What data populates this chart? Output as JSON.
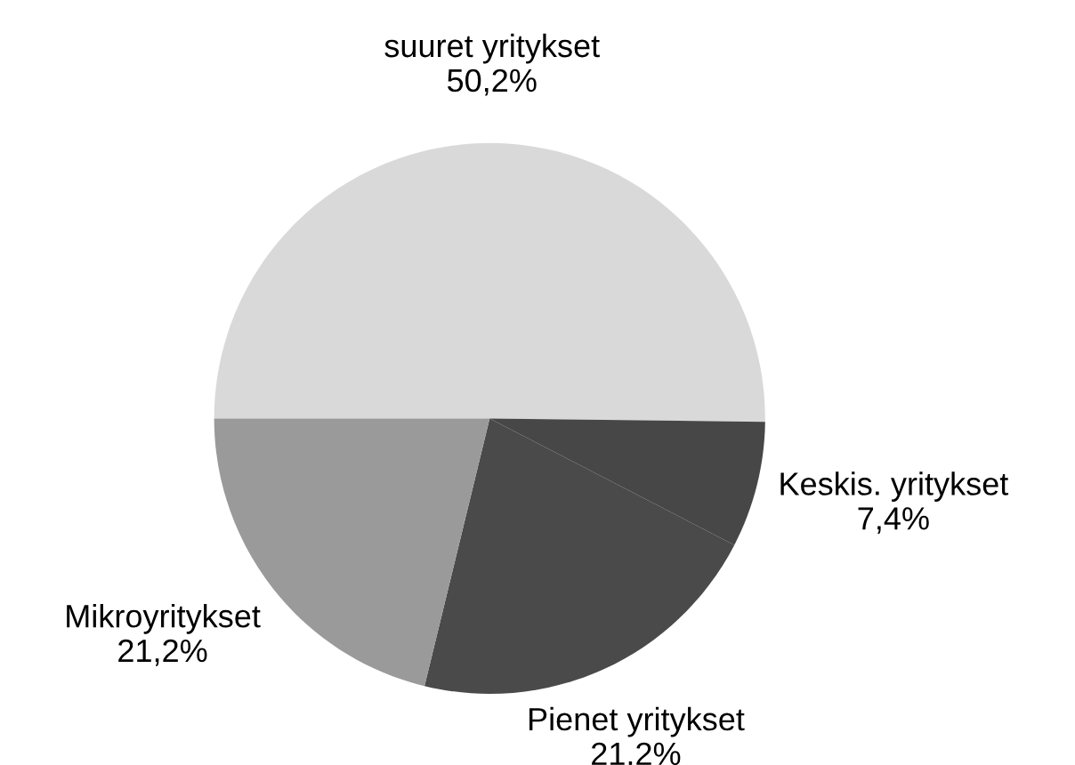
{
  "chart_data": {
    "type": "pie",
    "categories": [
      "suuret yritykset",
      "Keskis. yritykset",
      "Pienet yritykset",
      "Mikroyritykset"
    ],
    "values": [
      50.2,
      7.4,
      21.2,
      21.2
    ],
    "value_labels": [
      "50,2%",
      "7,4%",
      "21.2%",
      "21,2%"
    ],
    "colors": [
      "#d9d9d9",
      "#474747",
      "#4a4a4a",
      "#9a9a9a"
    ]
  }
}
